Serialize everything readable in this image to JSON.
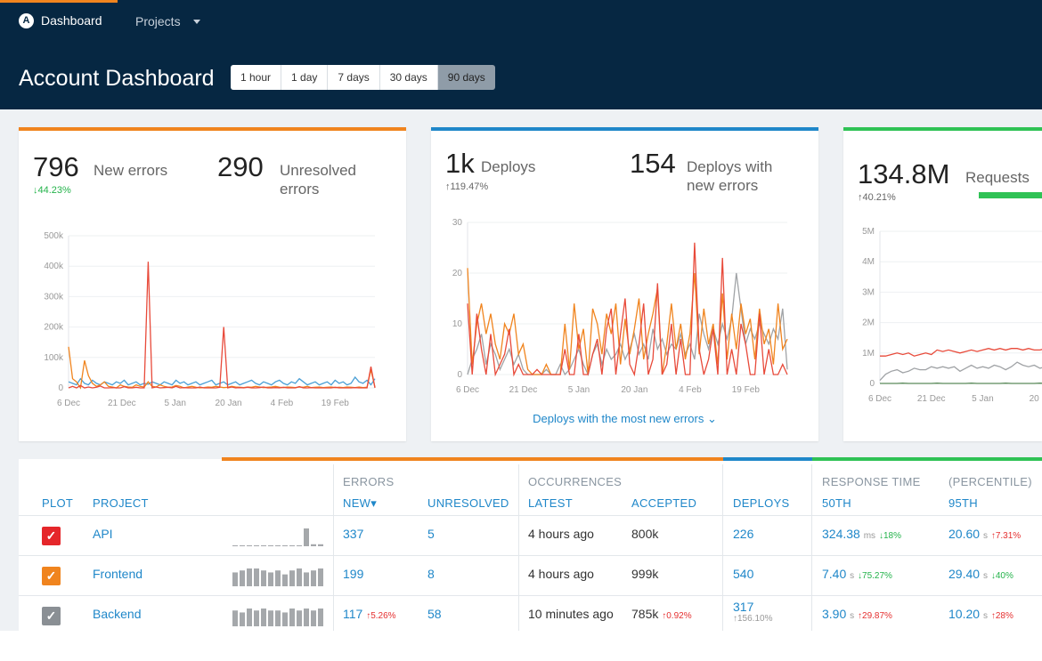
{
  "nav": {
    "logo": "A",
    "dashboard": "Dashboard",
    "projects": "Projects"
  },
  "header": {
    "title": "Account Dashboard",
    "ranges": [
      "1 hour",
      "1 day",
      "7 days",
      "30 days",
      "90 days"
    ],
    "active_range": "90 days"
  },
  "colors": {
    "orange": "#f0841e",
    "blue": "#1f87c9",
    "green": "#2fc255",
    "red": "#e84a3a",
    "gray": "#9aa0a6",
    "navy": "#062742"
  },
  "cards": {
    "errors": {
      "new_value": "796",
      "new_label": "New errors",
      "new_delta": "↓44.23%",
      "unresolved_value": "290",
      "unresolved_label": "Unresolved errors"
    },
    "deploys": {
      "deploys_value": "1k",
      "deploys_label": "Deploys",
      "deploys_delta": "↑119.47%",
      "with_errors_value": "154",
      "with_errors_label": "Deploys with new errors",
      "more_link": "Deploys with the most new errors ⌄"
    },
    "requests": {
      "value": "134.8M",
      "label": "Requests",
      "delta": "↑40.21%"
    }
  },
  "chart_data": [
    {
      "type": "line",
      "title": "New errors",
      "x_ticks": [
        "6 Dec",
        "21 Dec",
        "5 Jan",
        "20 Jan",
        "4 Feb",
        "19 Feb"
      ],
      "y_ticks": [
        "0",
        "100k",
        "200k",
        "300k",
        "400k",
        "500k"
      ],
      "ylim": [
        0,
        500000
      ],
      "series": [
        {
          "color": "#e84a3a",
          "values": [
            0,
            5000,
            0,
            8000,
            0,
            3000,
            0,
            2000,
            6000,
            0,
            0,
            1000,
            0,
            0,
            4000,
            0,
            0,
            2000,
            0,
            0,
            415000,
            0,
            3000,
            0,
            1000,
            2000,
            0,
            5000,
            0,
            1000,
            0,
            0,
            0,
            3000,
            0,
            0,
            0,
            0,
            2000,
            200000,
            0,
            3000,
            0,
            1000,
            0,
            2000,
            0,
            0,
            1000,
            3000,
            0,
            0,
            1000,
            0,
            2000,
            0,
            0,
            0,
            4000,
            0,
            0,
            1000,
            0,
            0,
            0,
            0,
            0,
            2000,
            0,
            0,
            0,
            0,
            1000,
            0,
            0,
            0,
            70000,
            0
          ]
        },
        {
          "color": "#f0841e",
          "values": [
            135000,
            30000,
            20000,
            0,
            90000,
            40000,
            15000,
            5000,
            10000,
            20000,
            5000,
            3000,
            0,
            10000,
            5000,
            3000,
            2000,
            10000,
            5000,
            3000,
            20000,
            5000,
            3000,
            10000,
            5000,
            2000,
            3000,
            8000,
            5000,
            0,
            3000,
            5000,
            2000,
            0,
            1000,
            3000,
            2000,
            5000,
            3000,
            1000,
            2000,
            5000,
            3000,
            2000,
            1000,
            3000,
            2000,
            5000,
            3000,
            1000,
            2000,
            3000,
            5000,
            2000,
            1000,
            3000,
            2000,
            1000,
            3000,
            2000,
            5000,
            1000,
            2000,
            3000,
            1000,
            2000,
            3000,
            1000,
            2000,
            1000,
            3000,
            2000,
            1000,
            3000,
            1000,
            2000,
            60000,
            2000
          ]
        },
        {
          "color": "#4a9fd5",
          "values": [
            20000,
            15000,
            10000,
            30000,
            15000,
            10000,
            25000,
            15000,
            10000,
            20000,
            15000,
            10000,
            20000,
            15000,
            25000,
            10000,
            15000,
            20000,
            10000,
            15000,
            12000,
            20000,
            15000,
            10000,
            20000,
            15000,
            10000,
            25000,
            15000,
            20000,
            10000,
            15000,
            20000,
            10000,
            15000,
            20000,
            25000,
            10000,
            15000,
            20000,
            10000,
            15000,
            20000,
            10000,
            15000,
            20000,
            25000,
            15000,
            10000,
            20000,
            15000,
            10000,
            20000,
            25000,
            15000,
            10000,
            20000,
            15000,
            30000,
            20000,
            10000,
            15000,
            20000,
            10000,
            15000,
            20000,
            10000,
            25000,
            15000,
            20000,
            10000,
            15000,
            35000,
            20000,
            15000,
            25000,
            10000,
            30000
          ]
        }
      ]
    },
    {
      "type": "line",
      "title": "Deploys",
      "x_ticks": [
        "6 Dec",
        "21 Dec",
        "5 Jan",
        "20 Jan",
        "4 Feb",
        "19 Feb"
      ],
      "y_ticks": [
        "0",
        "10",
        "20",
        "30"
      ],
      "ylim": [
        0,
        30
      ],
      "series": [
        {
          "color": "#e84a3a",
          "values": [
            14,
            0,
            12,
            5,
            0,
            8,
            0,
            2,
            4,
            9,
            0,
            2,
            0,
            0,
            0,
            1,
            0,
            0,
            0,
            0,
            0,
            5,
            0,
            0,
            8,
            0,
            0,
            4,
            7,
            0,
            9,
            13,
            0,
            8,
            15,
            2,
            0,
            6,
            14,
            0,
            3,
            18,
            0,
            2,
            10,
            0,
            7,
            0,
            0,
            26,
            5,
            0,
            3,
            9,
            0,
            23,
            0,
            5,
            0,
            10,
            6,
            0,
            0,
            12,
            0,
            5,
            0,
            0,
            2,
            0
          ]
        },
        {
          "color": "#f0841e",
          "values": [
            21,
            2,
            10,
            14,
            8,
            12,
            6,
            3,
            10,
            8,
            12,
            4,
            6,
            1,
            0,
            0,
            0,
            2,
            0,
            0,
            0,
            10,
            1,
            14,
            5,
            9,
            0,
            13,
            10,
            4,
            12,
            8,
            14,
            2,
            11,
            4,
            9,
            15,
            3,
            8,
            12,
            17,
            0,
            6,
            14,
            5,
            10,
            3,
            8,
            20,
            4,
            13,
            6,
            10,
            2,
            16,
            3,
            12,
            5,
            14,
            8,
            11,
            3,
            13,
            6,
            9,
            2,
            14,
            5,
            7
          ]
        },
        {
          "color": "#a0a3a6",
          "values": [
            0,
            3,
            5,
            8,
            2,
            6,
            4,
            1,
            3,
            5,
            2,
            4,
            1,
            0,
            0,
            0,
            0,
            1,
            0,
            0,
            2,
            0,
            1,
            3,
            5,
            2,
            0,
            4,
            6,
            2,
            5,
            3,
            4,
            6,
            3,
            5,
            8,
            4,
            6,
            3,
            9,
            5,
            7,
            4,
            6,
            5,
            8,
            4,
            6,
            3,
            12,
            8,
            5,
            9,
            6,
            10,
            7,
            11,
            20,
            13,
            6,
            9,
            7,
            10,
            8,
            6,
            9,
            7,
            13,
            1
          ]
        }
      ]
    },
    {
      "type": "line",
      "title": "Requests",
      "x_ticks": [
        "6 Dec",
        "21 Dec",
        "5 Jan",
        "20"
      ],
      "y_ticks": [
        "0",
        "1M",
        "2M",
        "3M",
        "4M",
        "5M"
      ],
      "ylim": [
        0,
        5000000
      ],
      "series": [
        {
          "color": "#e84a3a",
          "values": [
            900000,
            900000,
            950000,
            1000000,
            950000,
            1000000,
            900000,
            950000,
            1000000,
            950000,
            1100000,
            1050000,
            1100000,
            1050000,
            1000000,
            1050000,
            1100000,
            1050000,
            1100000,
            1150000,
            1100000,
            1150000,
            1100000,
            1150000,
            1150000,
            1100000,
            1150000,
            1100000,
            1100000,
            1150000,
            1100000,
            1100000
          ]
        },
        {
          "color": "#a0a3a6",
          "values": [
            100000,
            300000,
            400000,
            450000,
            350000,
            400000,
            500000,
            450000,
            450000,
            550000,
            500000,
            550000,
            500000,
            550000,
            400000,
            500000,
            600000,
            500000,
            550000,
            500000,
            600000,
            550000,
            450000,
            550000,
            700000,
            600000,
            550000,
            600000,
            500000,
            550000,
            650000,
            800000
          ]
        },
        {
          "color": "#5a8a5a",
          "values": [
            0,
            0,
            0,
            0,
            10000,
            0,
            0,
            0,
            0,
            0,
            10000,
            0,
            0,
            0,
            0,
            0,
            10000,
            0,
            0,
            0,
            0,
            0,
            10000,
            0,
            0,
            0,
            0,
            0,
            10000,
            0,
            0,
            0
          ]
        }
      ]
    }
  ],
  "table": {
    "group_errors": "ERRORS",
    "group_occurrences": "OCCURRENCES",
    "group_response": "RESPONSE TIME",
    "group_percentile": "(PERCENTILE)",
    "columns": {
      "plot": "PLOT",
      "project": "PROJECT",
      "new": "NEW",
      "new_sort": "▾",
      "unresolved": "UNRESOLVED",
      "latest": "LATEST",
      "accepted": "ACCEPTED",
      "deploys": "DEPLOYS",
      "p50": "50TH",
      "p95": "95TH"
    },
    "rows": [
      {
        "checkbox_color": "#e5262a",
        "project": "API",
        "spark": [
          0,
          0,
          0,
          0,
          0,
          0,
          0,
          0,
          0,
          0,
          9,
          1,
          1
        ],
        "new": "337",
        "new_delta": "",
        "unresolved": "5",
        "latest": "4 hours ago",
        "accepted": "800k",
        "accepted_delta": "",
        "deploys": "226",
        "deploys_sub": "",
        "p50": "324.38",
        "p50_unit": "ms",
        "p50_delta": "↓18%",
        "p95": "20.60",
        "p95_unit": "s",
        "p95_delta": "↑7.31%"
      },
      {
        "checkbox_color": "#f0841e",
        "project": "Frontend",
        "spark": [
          7,
          8,
          9,
          9,
          8,
          7,
          8,
          6,
          8,
          9,
          7,
          8,
          9
        ],
        "new": "199",
        "new_delta": "",
        "unresolved": "8",
        "latest": "4 hours ago",
        "accepted": "999k",
        "accepted_delta": "",
        "deploys": "540",
        "deploys_sub": "",
        "p50": "7.40",
        "p50_unit": "s",
        "p50_delta": "↓75.27%",
        "p95": "29.40",
        "p95_unit": "s",
        "p95_delta": "↓40%"
      },
      {
        "checkbox_color": "#8a8f94",
        "project": "Backend",
        "spark": [
          8,
          7,
          9,
          8,
          9,
          8,
          8,
          7,
          9,
          8,
          9,
          8,
          9
        ],
        "new": "117",
        "new_delta": "↑5.26%",
        "unresolved": "58",
        "latest": "10 minutes ago",
        "accepted": "785k",
        "accepted_delta": "↑0.92%",
        "deploys": "317",
        "deploys_sub": "↑156.10%",
        "p50": "3.90",
        "p50_unit": "s",
        "p50_delta": "↑29.87%",
        "p95": "10.20",
        "p95_unit": "s",
        "p95_delta": "↑28%"
      }
    ]
  }
}
